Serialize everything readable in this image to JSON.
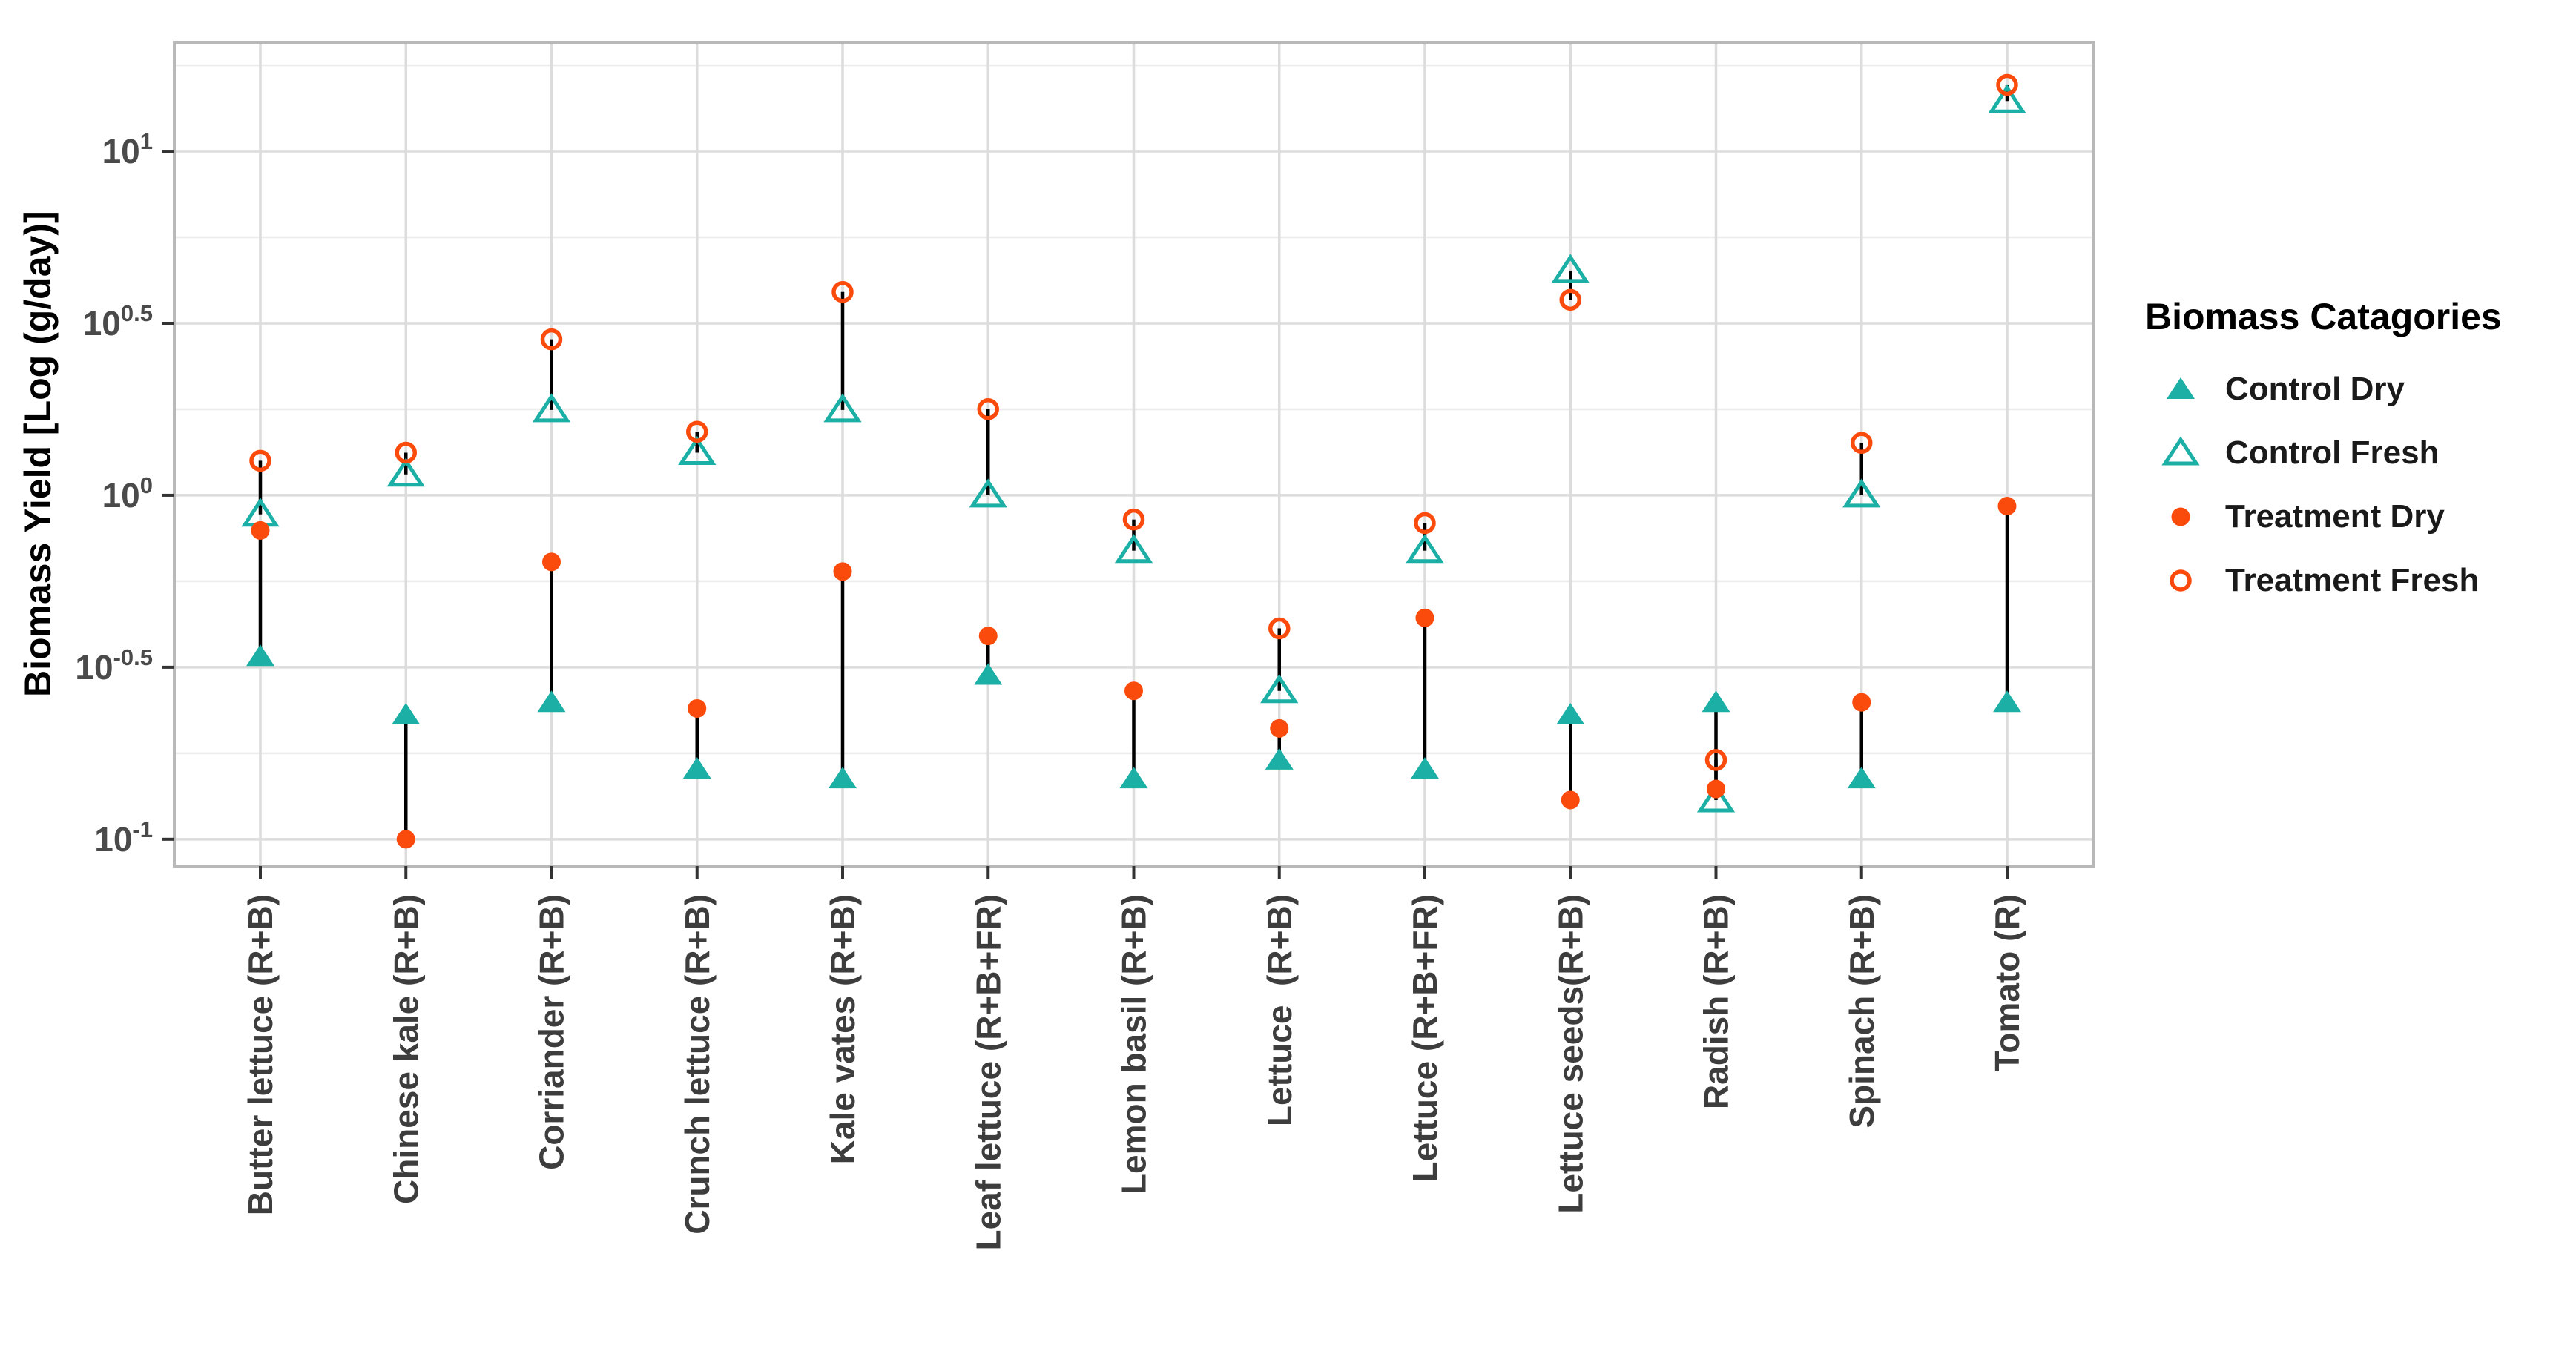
{
  "chart_data": {
    "type": "scatter",
    "title": "",
    "ylabel": "Biomass Yield [Log (g/day)]",
    "xlabel": "",
    "y_axis": {
      "scale": "log10",
      "tick_base": "10",
      "tick_exponents": [
        "1",
        "0.5",
        "0",
        "-0.5",
        "-1"
      ],
      "minor_exponents": [
        "1.25",
        "0.75",
        "0.25",
        "-0.25",
        "-0.75"
      ],
      "ylim_log": [
        -1.078,
        1.317
      ],
      "grid": "major+minor"
    },
    "categories": [
      "Butter lettuce (R+B)",
      "Chinese kale (R+B)",
      "Corriander (R+B)",
      "Crunch lettuce (R+B)",
      "Kale vates (R+B)",
      "Leaf lettuce (R+B+FR)",
      "Lemon basil (R+B)",
      "Lettuce  (R+B)",
      "Lettuce (R+B+FR)",
      "Lettuce seeds(R+B)",
      "Radish (R+B)",
      "Spinach (R+B)",
      "Tomato (R)"
    ],
    "series": [
      {
        "name": "Control Dry",
        "marker": "triangle-filled",
        "color": "#1BAFA5",
        "values": [
          0.34,
          0.23,
          0.25,
          0.16,
          0.15,
          0.3,
          0.15,
          0.17,
          0.16,
          0.23,
          0.25,
          0.15,
          0.25
        ]
      },
      {
        "name": "Control Fresh",
        "marker": "triangle-open",
        "color": "#1BAFA5",
        "values": [
          0.88,
          1.15,
          1.77,
          1.33,
          1.77,
          1.0,
          0.69,
          0.27,
          0.69,
          4.5,
          0.13,
          1.0,
          14.0
        ]
      },
      {
        "name": "Treatment Dry",
        "marker": "circle-filled",
        "color": "#FB4B0C",
        "values": [
          0.79,
          0.1,
          0.64,
          0.24,
          0.6,
          0.39,
          0.27,
          0.21,
          0.44,
          0.13,
          0.14,
          0.25,
          0.93
        ]
      },
      {
        "name": "Treatment Fresh",
        "marker": "circle-open",
        "color": "#FB4B0C",
        "values": [
          1.26,
          1.33,
          2.84,
          1.53,
          3.9,
          1.78,
          0.85,
          0.41,
          0.83,
          3.7,
          0.17,
          1.42,
          15.6
        ]
      }
    ],
    "connectors": [
      {
        "name": "fresh-range",
        "between": [
          "Treatment Fresh",
          "Control Fresh"
        ]
      },
      {
        "name": "dry-range",
        "between": [
          "Treatment Dry",
          "Control Dry"
        ]
      }
    ],
    "legend": {
      "title": "Biomass Catagories",
      "entries": [
        "Control Dry",
        "Control Fresh",
        "Treatment Dry",
        "Treatment Fresh"
      ]
    }
  },
  "colors": {
    "background": "#FFFFFF",
    "grid_major": "#DCDCDC",
    "grid_minor": "#ECECEC",
    "panel_border": "#B8B8B8",
    "tick": "#333333",
    "tick_label": "#4A4A4A",
    "x_label": "#3D3D3D",
    "axis_title": "#000000",
    "connector": "#000000"
  }
}
